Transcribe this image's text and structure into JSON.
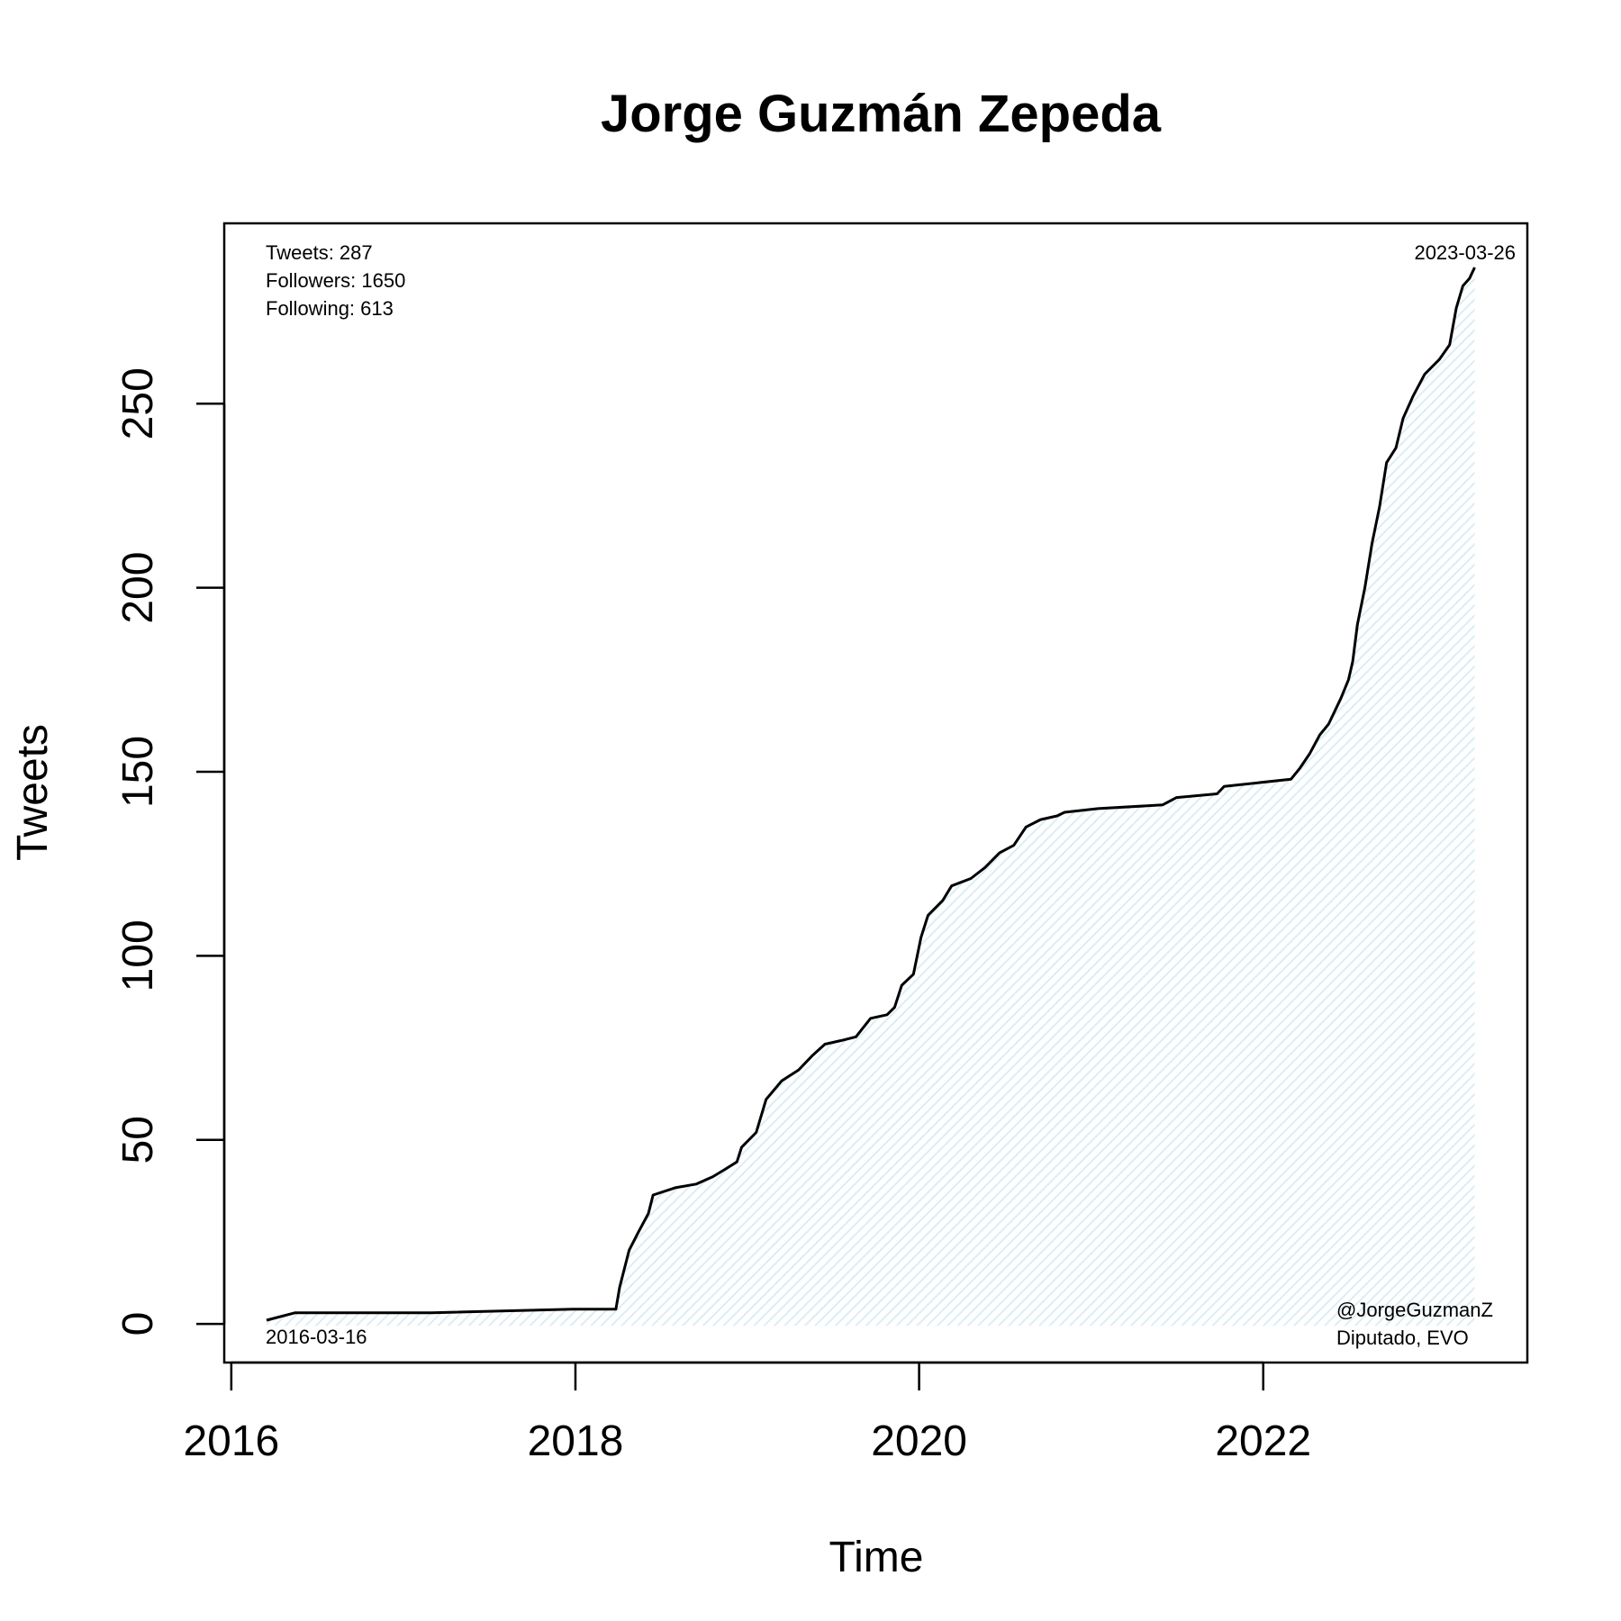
{
  "chart_data": {
    "type": "area",
    "title": "Jorge Guzmán Zepeda",
    "xlabel": "Time",
    "ylabel": "Tweets",
    "xlim": [
      "2015-12-17",
      "2023-07-16"
    ],
    "ylim": [
      -10.5,
      299
    ],
    "x_ticks": [
      {
        "date": "2016-01-01",
        "label": "2016"
      },
      {
        "date": "2018-01-01",
        "label": "2018"
      },
      {
        "date": "2020-01-01",
        "label": "2020"
      },
      {
        "date": "2022-01-01",
        "label": "2022"
      }
    ],
    "y_ticks": [
      0,
      50,
      100,
      150,
      200,
      250
    ],
    "grid": false,
    "line_color": "#000000",
    "fill_color": "#e6f3f7",
    "annotations": {
      "stats": [
        "Tweets: 287",
        "Followers: 1650",
        "Following: 613"
      ],
      "start_date": "2016-03-16",
      "end_date": "2023-03-26",
      "account": [
        "@JorgeGuzmanZ",
        "Diputado, EVO"
      ]
    },
    "series": [
      {
        "points": [
          [
            "2016-03-16",
            1
          ],
          [
            "2016-05-15",
            3
          ],
          [
            "2017-03-01",
            3
          ],
          [
            "2018-01-01",
            4
          ],
          [
            "2018-03-28",
            4
          ],
          [
            "2018-04-05",
            10
          ],
          [
            "2018-04-25",
            20
          ],
          [
            "2018-05-15",
            25
          ],
          [
            "2018-06-05",
            30
          ],
          [
            "2018-06-15",
            35
          ],
          [
            "2018-08-01",
            37
          ],
          [
            "2018-09-15",
            38
          ],
          [
            "2018-10-20",
            40
          ],
          [
            "2018-11-15",
            42
          ],
          [
            "2018-12-10",
            44
          ],
          [
            "2018-12-20",
            48
          ],
          [
            "2019-01-20",
            52
          ],
          [
            "2019-02-10",
            61
          ],
          [
            "2019-03-15",
            66
          ],
          [
            "2019-04-20",
            69
          ],
          [
            "2019-05-20",
            73
          ],
          [
            "2019-06-15",
            76
          ],
          [
            "2019-07-20",
            77
          ],
          [
            "2019-08-20",
            78
          ],
          [
            "2019-09-20",
            83
          ],
          [
            "2019-10-25",
            84
          ],
          [
            "2019-11-10",
            86
          ],
          [
            "2019-11-25",
            92
          ],
          [
            "2019-12-20",
            95
          ],
          [
            "2020-01-05",
            105
          ],
          [
            "2020-01-20",
            111
          ],
          [
            "2020-02-20",
            115
          ],
          [
            "2020-03-10",
            119
          ],
          [
            "2020-04-20",
            121
          ],
          [
            "2020-05-20",
            124
          ],
          [
            "2020-06-20",
            128
          ],
          [
            "2020-07-20",
            130
          ],
          [
            "2020-08-15",
            135
          ],
          [
            "2020-09-15",
            137
          ],
          [
            "2020-10-20",
            138
          ],
          [
            "2020-11-05",
            139
          ],
          [
            "2021-01-15",
            140
          ],
          [
            "2021-06-01",
            141
          ],
          [
            "2021-07-01",
            143
          ],
          [
            "2021-09-25",
            144
          ],
          [
            "2021-10-10",
            146
          ],
          [
            "2022-03-01",
            148
          ],
          [
            "2022-03-20",
            151
          ],
          [
            "2022-04-10",
            155
          ],
          [
            "2022-05-01",
            160
          ],
          [
            "2022-05-20",
            163
          ],
          [
            "2022-06-15",
            170
          ],
          [
            "2022-07-01",
            175
          ],
          [
            "2022-07-10",
            180
          ],
          [
            "2022-07-20",
            190
          ],
          [
            "2022-08-05",
            200
          ],
          [
            "2022-08-20",
            212
          ],
          [
            "2022-09-05",
            222
          ],
          [
            "2022-09-20",
            234
          ],
          [
            "2022-10-10",
            238
          ],
          [
            "2022-10-25",
            246
          ],
          [
            "2022-11-15",
            252
          ],
          [
            "2022-12-10",
            258
          ],
          [
            "2023-01-10",
            262
          ],
          [
            "2023-02-01",
            266
          ],
          [
            "2023-02-15",
            276
          ],
          [
            "2023-03-01",
            282
          ],
          [
            "2023-03-15",
            284
          ],
          [
            "2023-03-26",
            287
          ]
        ]
      }
    ]
  }
}
